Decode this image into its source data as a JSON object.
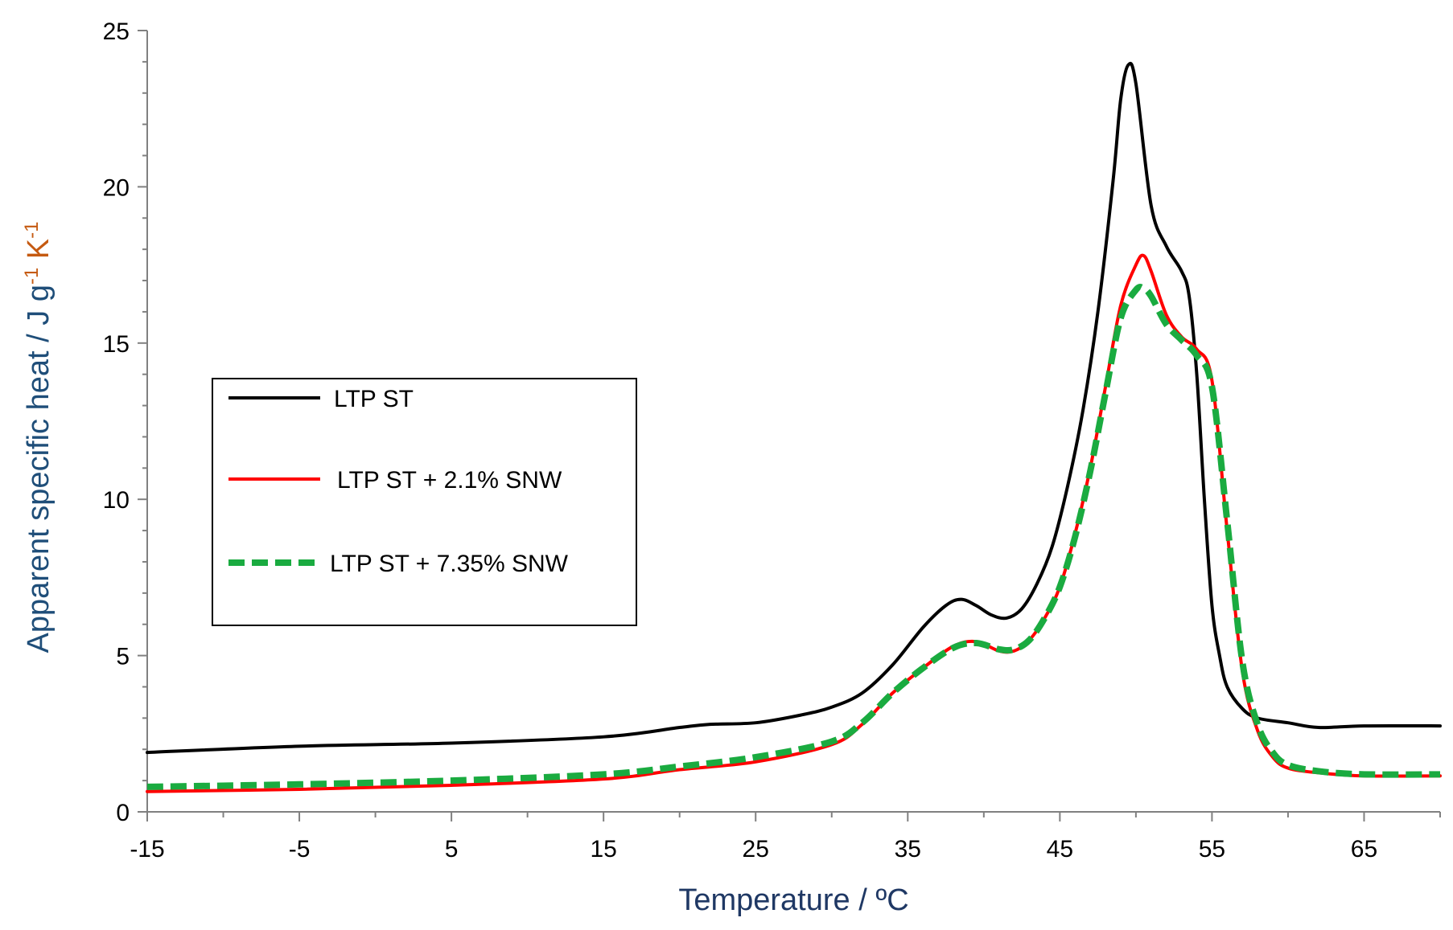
{
  "chart_data": {
    "type": "line",
    "title": "",
    "xlabel": "Temperature / ºC",
    "ylabel": "Apparent specific heat / J g-1 K-1",
    "ylabel_parts": {
      "main": "Apparent specific heat / J g",
      "sup1": "-1",
      "mid": " K",
      "sup2": "-1"
    },
    "xlabel_color": "#1f3864",
    "ylabel_color_main": "#1f4e79",
    "ylabel_color_tail": "#c55a11",
    "xlim": [
      -15,
      70
    ],
    "ylim": [
      0,
      25
    ],
    "xticks": [
      -15,
      -5,
      5,
      15,
      25,
      35,
      45,
      55,
      65
    ],
    "yticks": [
      0,
      5,
      10,
      15,
      20,
      25
    ],
    "grid": false,
    "legend_position": "center-left",
    "series": [
      {
        "name": "LTP ST",
        "color": "#000000",
        "style": "solid",
        "x": [
          -15,
          -5,
          5,
          15,
          20,
          22,
          25,
          28,
          30,
          32,
          34,
          36,
          37.5,
          38.5,
          39.5,
          40.5,
          41.5,
          42.5,
          43.5,
          44.5,
          45.5,
          46.5,
          47.5,
          48.5,
          49,
          49.5,
          50,
          51,
          52,
          53,
          53.5,
          54,
          54.5,
          55,
          55.5,
          56,
          57,
          58,
          60,
          62,
          65,
          70
        ],
        "y": [
          1.9,
          2.1,
          2.2,
          2.4,
          2.7,
          2.8,
          2.85,
          3.1,
          3.35,
          3.8,
          4.7,
          5.9,
          6.6,
          6.8,
          6.6,
          6.3,
          6.2,
          6.5,
          7.3,
          8.5,
          10.4,
          12.8,
          16,
          20.2,
          22.8,
          23.9,
          23.3,
          19.4,
          18.1,
          17.3,
          16.5,
          14,
          10,
          6.6,
          5,
          4,
          3.3,
          3,
          2.85,
          2.7,
          2.75,
          2.75
        ]
      },
      {
        "name": "LTP ST + 2.1% SNW",
        "color": "#ff0000",
        "style": "solid",
        "x": [
          -15,
          -5,
          5,
          15,
          20,
          25,
          30,
          32,
          34,
          36,
          38,
          39.5,
          41,
          42,
          43,
          44,
          45,
          46,
          47,
          48,
          49,
          50,
          50.5,
          51,
          52,
          53,
          54,
          55,
          56,
          57,
          58,
          59,
          60,
          62,
          65,
          70
        ],
        "y": [
          0.65,
          0.72,
          0.85,
          1.05,
          1.35,
          1.6,
          2.15,
          2.8,
          3.8,
          4.6,
          5.3,
          5.45,
          5.15,
          5.15,
          5.5,
          6.2,
          7.2,
          8.9,
          11,
          13.6,
          16.2,
          17.5,
          17.8,
          17.3,
          15.9,
          15.2,
          14.8,
          13.8,
          9,
          4.5,
          2.6,
          1.75,
          1.4,
          1.25,
          1.15,
          1.15
        ]
      },
      {
        "name": "LTP ST + 7.35% SNW",
        "color": "#1aab40",
        "style": "dashed",
        "x": [
          -15,
          -5,
          5,
          15,
          20,
          25,
          30,
          32,
          34,
          36,
          38,
          39.5,
          41,
          42,
          43,
          44,
          45,
          46,
          47,
          48,
          49,
          50,
          50.5,
          51,
          52,
          53,
          54,
          55,
          56,
          57,
          58,
          59,
          60,
          62,
          65,
          70
        ],
        "y": [
          0.8,
          0.88,
          1.0,
          1.2,
          1.45,
          1.75,
          2.25,
          2.85,
          3.8,
          4.6,
          5.25,
          5.4,
          5.2,
          5.2,
          5.5,
          6.2,
          7.2,
          8.8,
          10.9,
          13.4,
          15.8,
          16.7,
          16.75,
          16.5,
          15.6,
          15.1,
          14.6,
          13.6,
          9.3,
          4.8,
          2.8,
          1.9,
          1.5,
          1.3,
          1.2,
          1.2
        ]
      }
    ]
  }
}
